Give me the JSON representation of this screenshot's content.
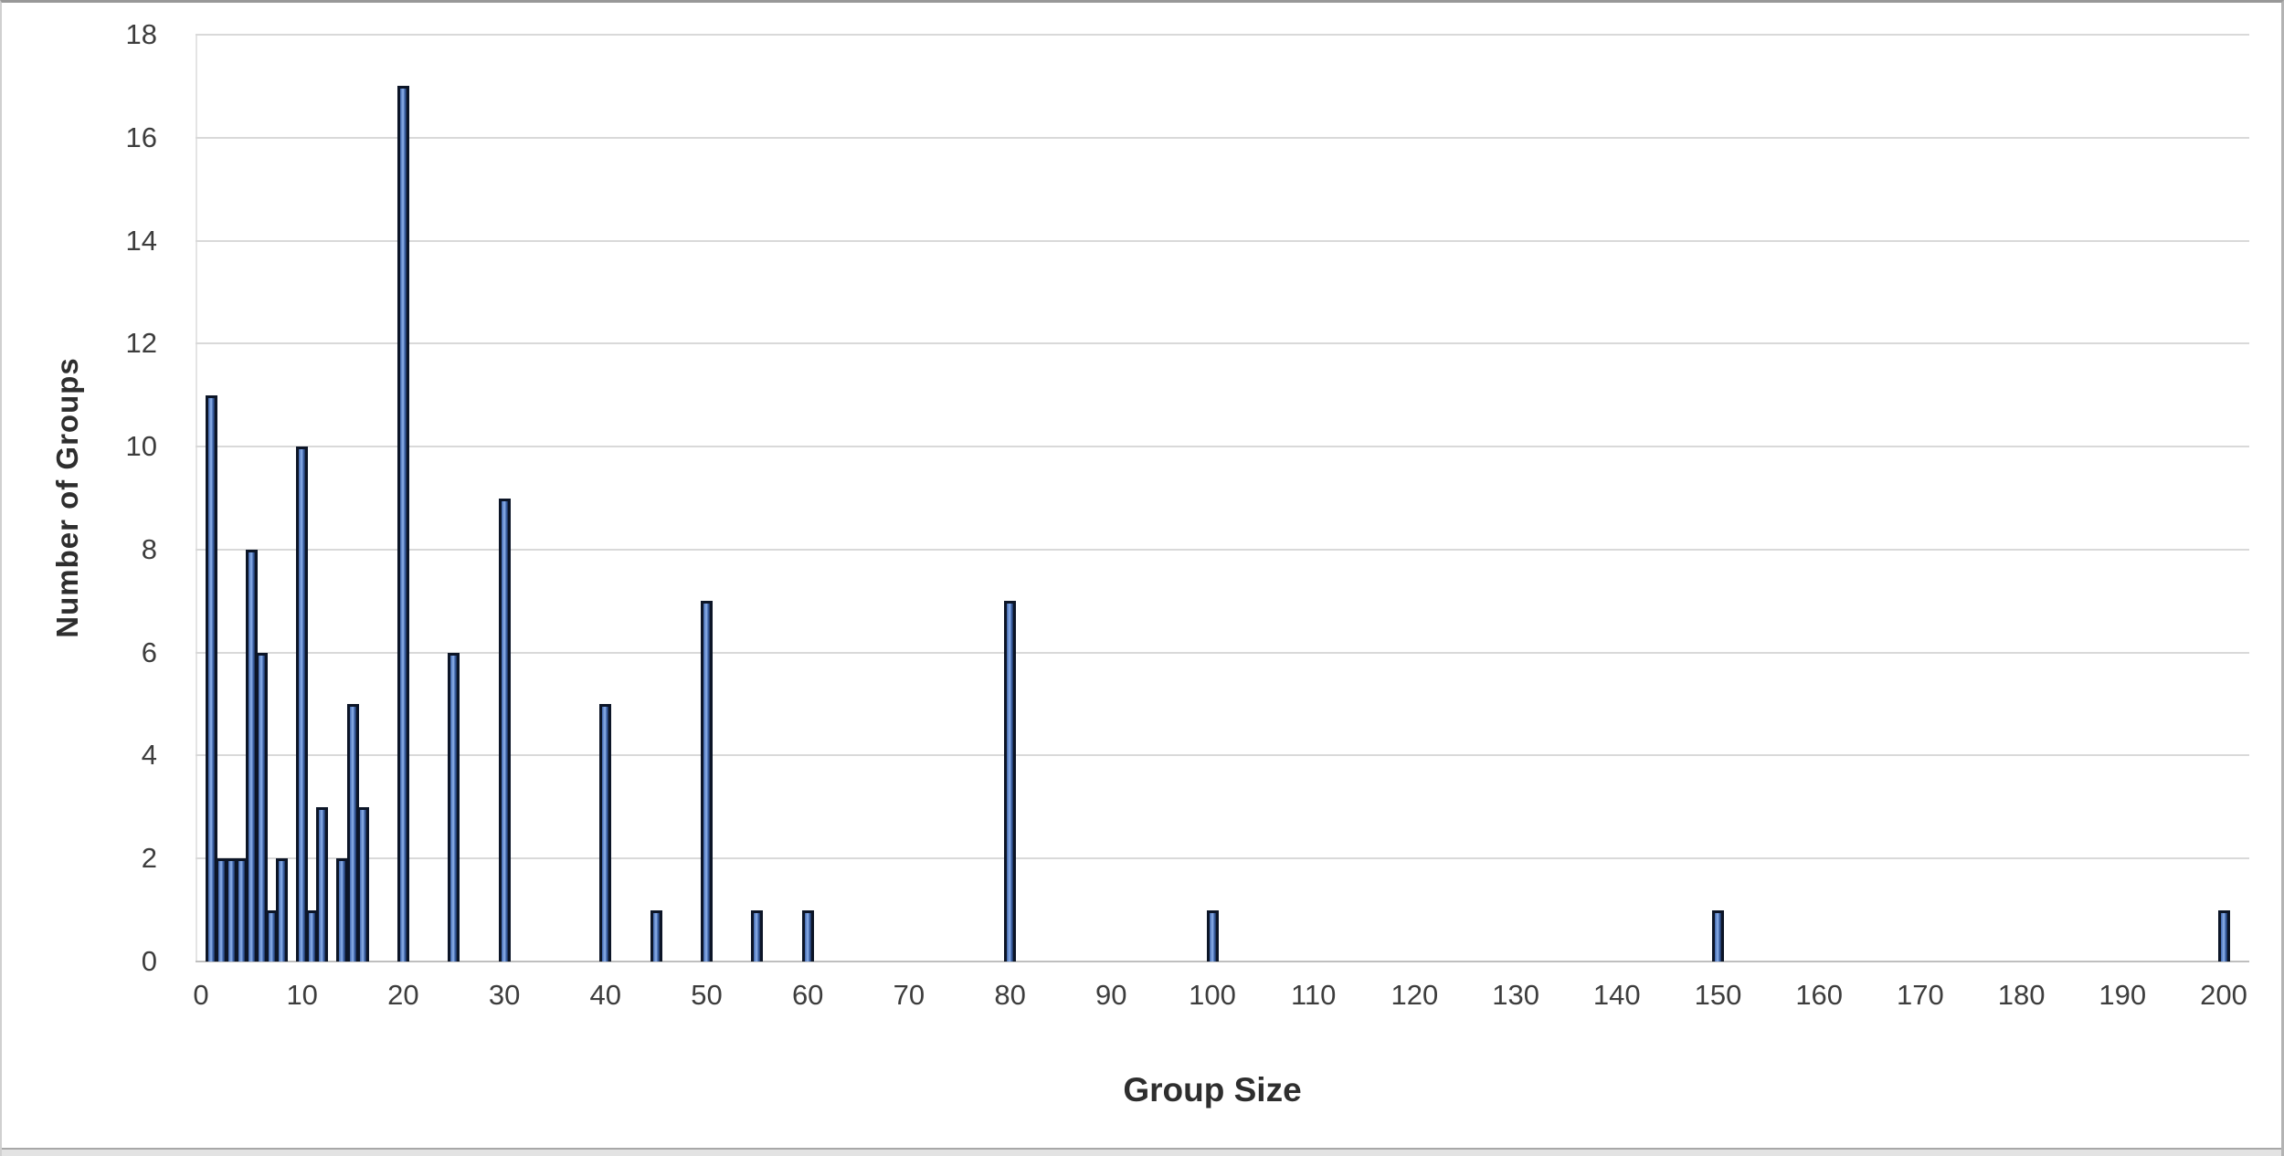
{
  "chart_data": {
    "type": "bar",
    "title": "",
    "xlabel": "Group Size",
    "ylabel": "Number of Groups",
    "x_ticks": [
      0,
      10,
      20,
      30,
      40,
      50,
      60,
      70,
      80,
      90,
      100,
      110,
      120,
      130,
      140,
      150,
      160,
      170,
      180,
      190,
      200
    ],
    "y_ticks": [
      0,
      2,
      4,
      6,
      8,
      10,
      12,
      14,
      16,
      18
    ],
    "xlim": [
      0,
      200
    ],
    "ylim": [
      0,
      18
    ],
    "grid": "horizontal-only",
    "legend": "none",
    "points": [
      {
        "x": 1,
        "y": 11
      },
      {
        "x": 2,
        "y": 2
      },
      {
        "x": 3,
        "y": 2
      },
      {
        "x": 4,
        "y": 2
      },
      {
        "x": 5,
        "y": 8
      },
      {
        "x": 6,
        "y": 6
      },
      {
        "x": 7,
        "y": 1
      },
      {
        "x": 8,
        "y": 2
      },
      {
        "x": 10,
        "y": 10
      },
      {
        "x": 11,
        "y": 1
      },
      {
        "x": 12,
        "y": 3
      },
      {
        "x": 14,
        "y": 2
      },
      {
        "x": 15,
        "y": 5
      },
      {
        "x": 16,
        "y": 3
      },
      {
        "x": 20,
        "y": 17
      },
      {
        "x": 25,
        "y": 6
      },
      {
        "x": 30,
        "y": 9
      },
      {
        "x": 40,
        "y": 5
      },
      {
        "x": 45,
        "y": 1
      },
      {
        "x": 50,
        "y": 7
      },
      {
        "x": 55,
        "y": 1
      },
      {
        "x": 60,
        "y": 1
      },
      {
        "x": 80,
        "y": 7
      },
      {
        "x": 100,
        "y": 1
      },
      {
        "x": 150,
        "y": 1
      },
      {
        "x": 200,
        "y": 1
      }
    ],
    "colors": {
      "bar_fill": "#3f66ad",
      "bar_fill_dark": "#1c3158",
      "bar_fill_highlight": "#8fb2ea",
      "bar_border": "#0c1527",
      "gridline": "#d9d9d9",
      "axis_line": "#bfbfbf",
      "tick_label": "#3d3d3d",
      "axis_title": "#2e2e2e"
    }
  }
}
